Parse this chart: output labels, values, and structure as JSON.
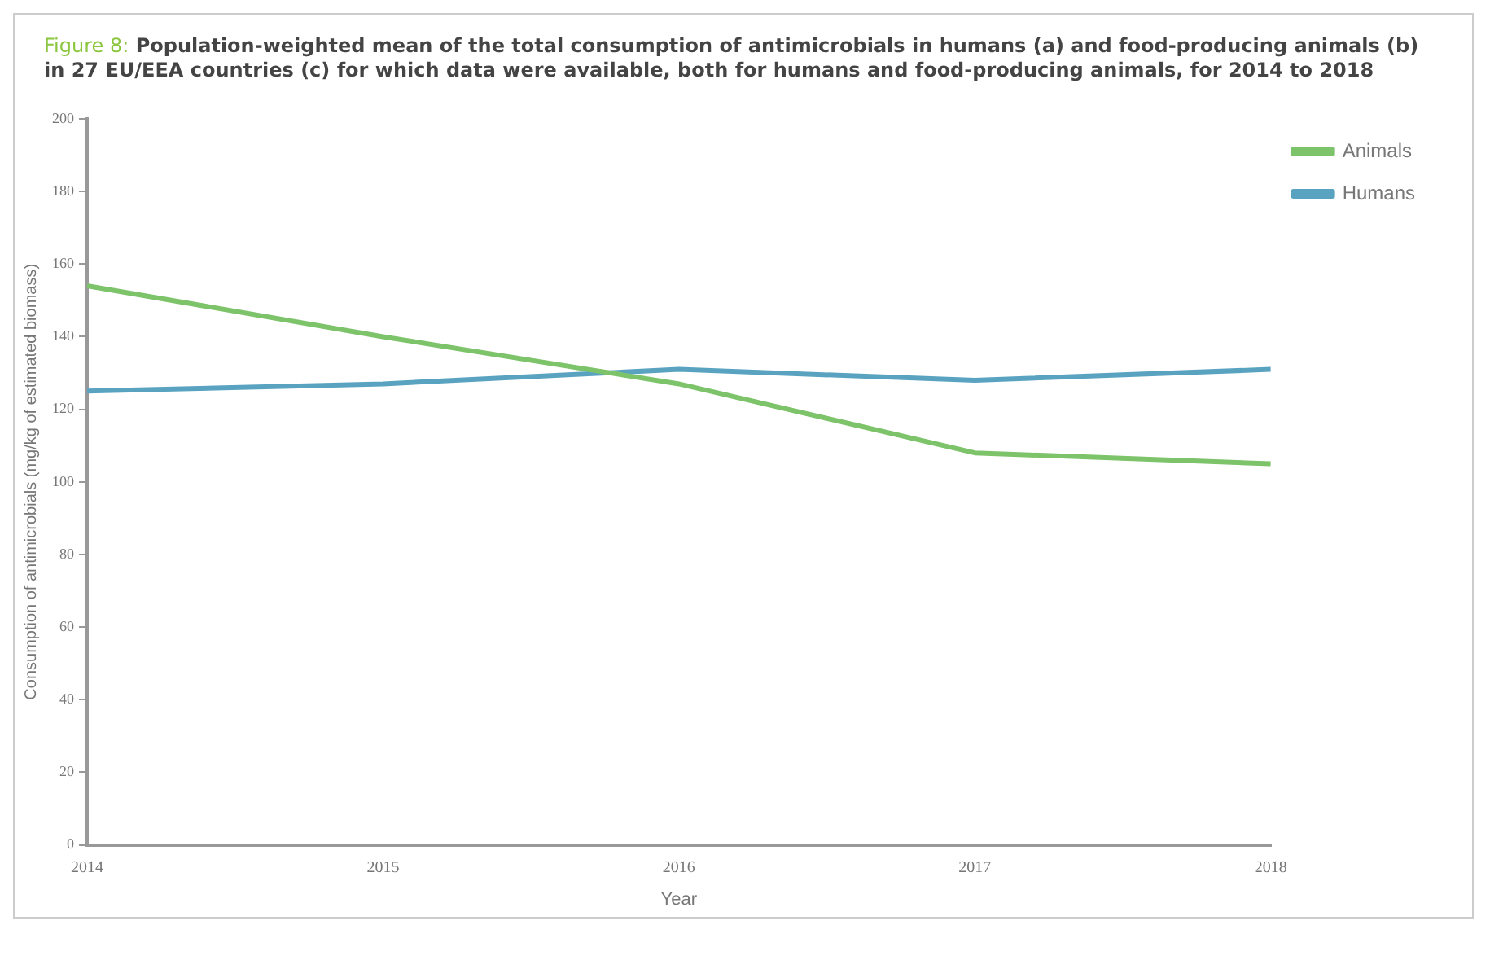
{
  "chart_data": {
    "type": "line",
    "title": "Figure 8: Population-weighted mean of the total consumption of antimicrobials in humans (a) and food-producing animals (b) in 27 EU/EEA countries (c) for which data were available, both for humans and food-producing animals, for 2014 to 2018",
    "xlabel": "Year",
    "ylabel": "Consumption of antimicrobials (mg/kg of estimated biomass)",
    "categories": [
      "2014",
      "2015",
      "2016",
      "2017",
      "2018"
    ],
    "series": [
      {
        "name": "Animals",
        "color": "#7cc36a",
        "values": [
          154,
          140,
          127,
          108,
          105
        ]
      },
      {
        "name": "Humans",
        "color": "#5aa3c0",
        "values": [
          125,
          127,
          131,
          128,
          131
        ]
      }
    ],
    "ylim": [
      0,
      200
    ],
    "yticks": [
      0,
      20,
      40,
      60,
      80,
      100,
      120,
      140,
      160,
      180,
      200
    ],
    "grid": false,
    "legend": "top right",
    "marker": "none",
    "line_style": "solid"
  }
}
